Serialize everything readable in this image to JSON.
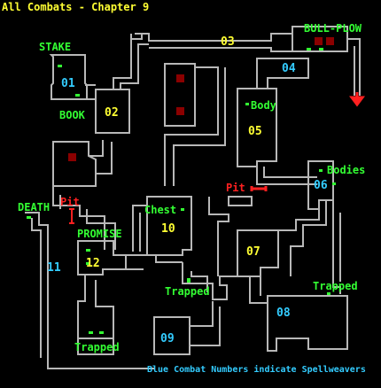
{
  "title": "All Combats - Chapter 9",
  "colors": {
    "background": "#000000",
    "walls": "#b8b8b8",
    "spellweaver_number": "#33ccff",
    "normal_number": "#ffff33",
    "location_label": "#33ff33",
    "hazard_label": "#ff2020",
    "hazard_marker": "#ff2020",
    "dark_block": "#8b0000",
    "title": "#ffff33",
    "note": "#33ccff"
  },
  "combats": [
    {
      "number": "01",
      "spellweaver": true
    },
    {
      "number": "02",
      "spellweaver": false
    },
    {
      "number": "03",
      "spellweaver": false
    },
    {
      "number": "04",
      "spellweaver": true
    },
    {
      "number": "05",
      "spellweaver": false
    },
    {
      "number": "06",
      "spellweaver": true
    },
    {
      "number": "07",
      "spellweaver": false
    },
    {
      "number": "08",
      "spellweaver": true
    },
    {
      "number": "09",
      "spellweaver": true
    },
    {
      "number": "10",
      "spellweaver": false
    },
    {
      "number": "11",
      "spellweaver": true
    },
    {
      "number": "12",
      "spellweaver": false
    }
  ],
  "locations": {
    "stake": "STAKE",
    "book": "BOOK",
    "bull_plow": "BULL-PLOW",
    "body": "Body",
    "bodies": "Bodies",
    "chest": "Chest",
    "death": "DEATH",
    "promise": "PROMISE",
    "trapped_west": "Trapped",
    "trapped_center": "Trapped",
    "trapped_east": "Trapped"
  },
  "hazards": {
    "pit_west": "Pit",
    "pit_east": "Pit"
  },
  "legend_note": "Blue Combat Numbers indicate Spellweavers",
  "icons": [
    "exit-arrow-icon",
    "pit-marker-icon",
    "item-dot-icon"
  ]
}
